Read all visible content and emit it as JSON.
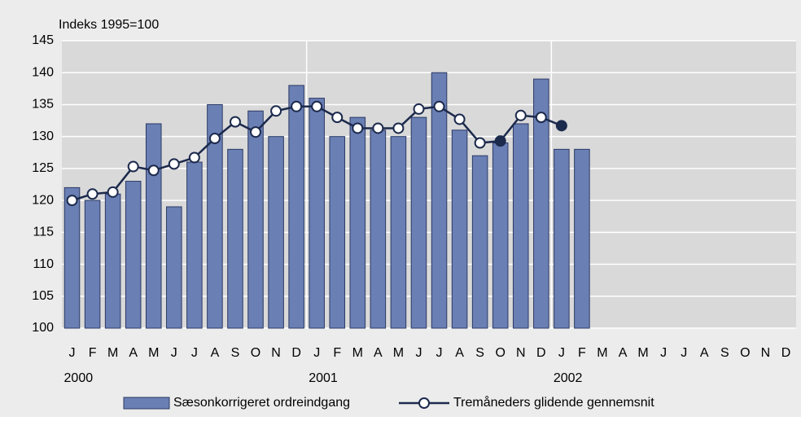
{
  "chart_data": {
    "type": "bar_line",
    "y_axis_label": "Indeks 1995=100",
    "categories": [
      "J",
      "F",
      "M",
      "A",
      "M",
      "J",
      "J",
      "A",
      "S",
      "O",
      "N",
      "D",
      "J",
      "F",
      "M",
      "A",
      "M",
      "J",
      "J",
      "A",
      "S",
      "O",
      "N",
      "D",
      "J",
      "F",
      "M",
      "A",
      "M",
      "J",
      "J",
      "A",
      "S",
      "O",
      "N",
      "D"
    ],
    "year_groups": [
      "2000",
      "2001",
      "2002"
    ],
    "series": [
      {
        "name": "Sæsonkorrigeret ordreindgang",
        "kind": "bar",
        "color": "#6a7fb4",
        "values": [
          122,
          120,
          121,
          123,
          132,
          119,
          126,
          135,
          128,
          134,
          130,
          138,
          136,
          130,
          133,
          131,
          130,
          133,
          140,
          131,
          127,
          129,
          132,
          139,
          128,
          128,
          null,
          null,
          null,
          null,
          null,
          null,
          null,
          null,
          null,
          null
        ]
      },
      {
        "name": "Tremåneders glidende gennemsnit",
        "kind": "line",
        "color": "#1c2a4d",
        "values": [
          120,
          121,
          121.3,
          125.3,
          124.7,
          125.7,
          126.7,
          129.7,
          132.3,
          130.7,
          134,
          134.7,
          134.7,
          133,
          131.3,
          131.3,
          131.3,
          134.3,
          134.7,
          132.7,
          129,
          129.3,
          133.3,
          133,
          131.7,
          null,
          null,
          null,
          null,
          null,
          null,
          null,
          null,
          null,
          null,
          null
        ],
        "filled_markers": [
          21,
          24
        ]
      }
    ],
    "ylim": [
      100,
      145
    ],
    "yticks": [
      100,
      105,
      110,
      115,
      120,
      125,
      130,
      135,
      140,
      145
    ],
    "grid": true,
    "legend": "bottom"
  }
}
